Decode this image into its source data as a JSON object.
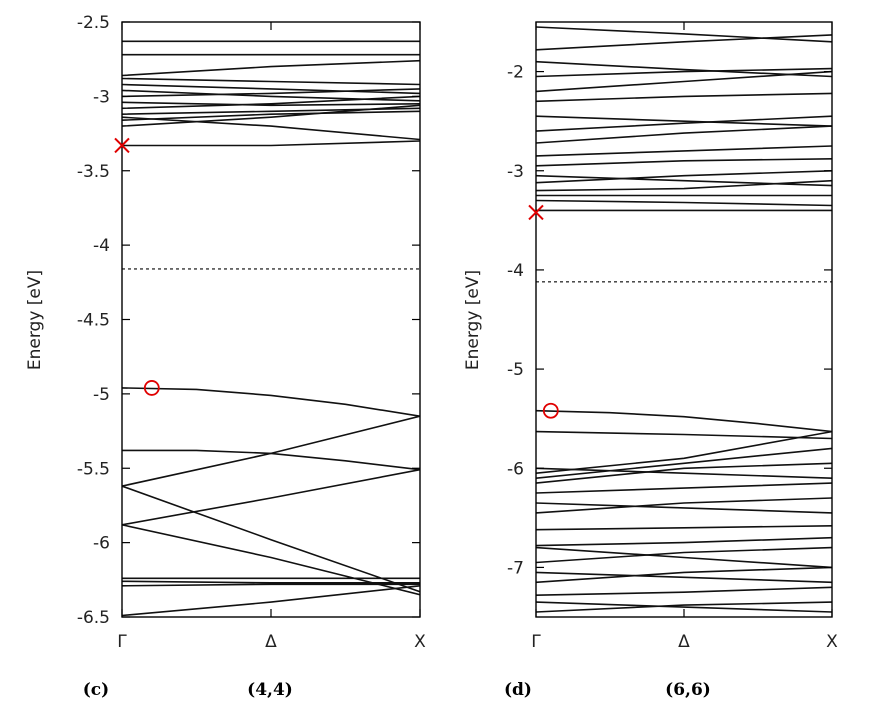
{
  "chart_data": [
    {
      "type": "line",
      "panel_label": "(c)",
      "title": "(4,4)",
      "xlabel": "",
      "ylabel": "Energy [eV]",
      "ylim": [
        -6.5,
        -2.5
      ],
      "yticks": [
        -2.5,
        -3,
        -3.5,
        -4,
        -4.5,
        -5,
        -5.5,
        -6,
        -6.5
      ],
      "ytick_labels": [
        "-2.5",
        "-3",
        "-3.5",
        "-4",
        "-4.5",
        "-5",
        "-5.5",
        "-6",
        "-6.5"
      ],
      "xticks": [
        "Γ",
        "Δ",
        "X"
      ],
      "grid": false,
      "fermi_level": -4.16,
      "markers": [
        {
          "kind": "cross",
          "k": 0.0,
          "energy": -3.33,
          "color": "#e00000"
        },
        {
          "kind": "circle",
          "k": 0.1,
          "energy": -4.96,
          "color": "#e00000"
        }
      ],
      "series": [
        {
          "x": [
            0,
            0.5,
            1
          ],
          "values": [
            -2.63,
            -2.63,
            -2.63
          ]
        },
        {
          "x": [
            0,
            0.5,
            1
          ],
          "values": [
            -2.72,
            -2.72,
            -2.72
          ]
        },
        {
          "x": [
            0,
            0.5,
            1
          ],
          "values": [
            -2.86,
            -2.8,
            -2.76
          ]
        },
        {
          "x": [
            0,
            0.5,
            1
          ],
          "values": [
            -2.88,
            -2.9,
            -2.92
          ]
        },
        {
          "x": [
            0,
            0.5,
            1
          ],
          "values": [
            -2.92,
            -2.95,
            -2.98
          ]
        },
        {
          "x": [
            0,
            0.5,
            1
          ],
          "values": [
            -2.96,
            -3.0,
            -3.03
          ]
        },
        {
          "x": [
            0,
            0.5,
            1
          ],
          "values": [
            -3.0,
            -2.98,
            -2.95
          ]
        },
        {
          "x": [
            0,
            0.5,
            1
          ],
          "values": [
            -3.04,
            -3.06,
            -3.05
          ]
        },
        {
          "x": [
            0,
            0.5,
            1
          ],
          "values": [
            -3.08,
            -3.05,
            -3.0
          ]
        },
        {
          "x": [
            0,
            0.5,
            1
          ],
          "values": [
            -3.12,
            -3.1,
            -3.08
          ]
        },
        {
          "x": [
            0,
            0.5,
            1
          ],
          "values": [
            -3.16,
            -3.12,
            -3.1
          ]
        },
        {
          "x": [
            0,
            0.5,
            1
          ],
          "values": [
            -3.2,
            -3.14,
            -3.06
          ]
        },
        {
          "x": [
            0,
            0.5,
            1
          ],
          "values": [
            -3.14,
            -3.2,
            -3.29
          ]
        },
        {
          "x": [
            0,
            0.5,
            1
          ],
          "values": [
            -3.33,
            -3.33,
            -3.3
          ]
        },
        {
          "x": [
            0,
            0.25,
            0.5,
            0.75,
            1
          ],
          "values": [
            -4.96,
            -4.97,
            -5.01,
            -5.07,
            -5.15
          ]
        },
        {
          "x": [
            0,
            0.25,
            0.5,
            0.75,
            1
          ],
          "values": [
            -5.38,
            -5.38,
            -5.4,
            -5.45,
            -5.51
          ]
        },
        {
          "x": [
            0,
            0.5,
            1
          ],
          "values": [
            -5.62,
            -5.4,
            -5.15
          ]
        },
        {
          "x": [
            0,
            0.5,
            1
          ],
          "values": [
            -5.62,
            -5.98,
            -6.33
          ]
        },
        {
          "x": [
            0,
            0.5,
            1
          ],
          "values": [
            -5.88,
            -5.7,
            -5.51
          ]
        },
        {
          "x": [
            0,
            0.5,
            1
          ],
          "values": [
            -5.88,
            -6.1,
            -6.35
          ]
        },
        {
          "x": [
            0,
            0.5,
            1
          ],
          "values": [
            -6.24,
            -6.24,
            -6.24
          ]
        },
        {
          "x": [
            0,
            0.5,
            1
          ],
          "values": [
            -6.26,
            -6.27,
            -6.27
          ]
        },
        {
          "x": [
            0,
            0.5,
            1
          ],
          "values": [
            -6.29,
            -6.28,
            -6.28
          ]
        },
        {
          "x": [
            0,
            0.5,
            1
          ],
          "values": [
            -6.49,
            -6.4,
            -6.29
          ]
        }
      ]
    },
    {
      "type": "line",
      "panel_label": "(d)",
      "title": "(6,6)",
      "xlabel": "",
      "ylabel": "Energy [eV]",
      "ylim": [
        -7.5,
        -1.5
      ],
      "yticks": [
        -2,
        -3,
        -4,
        -5,
        -6,
        -7
      ],
      "ytick_labels": [
        "-2",
        "-3",
        "-4",
        "-5",
        "-6",
        "-7"
      ],
      "xticks": [
        "Γ",
        "Δ",
        "X"
      ],
      "grid": false,
      "fermi_level": -4.12,
      "markers": [
        {
          "kind": "cross",
          "k": 0.0,
          "energy": -3.42,
          "color": "#e00000"
        },
        {
          "kind": "circle",
          "k": 0.05,
          "energy": -5.42,
          "color": "#e00000"
        }
      ],
      "series": [
        {
          "x": [
            0,
            0.5,
            1
          ],
          "values": [
            -1.55,
            -1.62,
            -1.7
          ]
        },
        {
          "x": [
            0,
            0.5,
            1
          ],
          "values": [
            -1.78,
            -1.7,
            -1.63
          ]
        },
        {
          "x": [
            0,
            0.5,
            1
          ],
          "values": [
            -1.9,
            -1.98,
            -2.05
          ]
        },
        {
          "x": [
            0,
            0.5,
            1
          ],
          "values": [
            -2.05,
            -2.0,
            -1.97
          ]
        },
        {
          "x": [
            0,
            0.5,
            1
          ],
          "values": [
            -2.2,
            -2.1,
            -2.0
          ]
        },
        {
          "x": [
            0,
            0.5,
            1
          ],
          "values": [
            -2.3,
            -2.25,
            -2.22
          ]
        },
        {
          "x": [
            0,
            0.5,
            1
          ],
          "values": [
            -2.45,
            -2.5,
            -2.55
          ]
        },
        {
          "x": [
            0,
            0.5,
            1
          ],
          "values": [
            -2.6,
            -2.52,
            -2.45
          ]
        },
        {
          "x": [
            0,
            0.5,
            1
          ],
          "values": [
            -2.72,
            -2.62,
            -2.55
          ]
        },
        {
          "x": [
            0,
            0.5,
            1
          ],
          "values": [
            -2.85,
            -2.8,
            -2.75
          ]
        },
        {
          "x": [
            0,
            0.5,
            1
          ],
          "values": [
            -2.95,
            -2.9,
            -2.88
          ]
        },
        {
          "x": [
            0,
            0.5,
            1
          ],
          "values": [
            -3.05,
            -3.1,
            -3.15
          ]
        },
        {
          "x": [
            0,
            0.5,
            1
          ],
          "values": [
            -3.12,
            -3.05,
            -3.0
          ]
        },
        {
          "x": [
            0,
            0.5,
            1
          ],
          "values": [
            -3.2,
            -3.18,
            -3.1
          ]
        },
        {
          "x": [
            0,
            0.5,
            1
          ],
          "values": [
            -3.25,
            -3.25,
            -3.25
          ]
        },
        {
          "x": [
            0,
            0.5,
            1
          ],
          "values": [
            -3.3,
            -3.32,
            -3.35
          ]
        },
        {
          "x": [
            0,
            0.5,
            1
          ],
          "values": [
            -3.4,
            -3.4,
            -3.4
          ]
        },
        {
          "x": [
            0,
            0.25,
            0.5,
            0.75,
            1
          ],
          "values": [
            -5.42,
            -5.44,
            -5.48,
            -5.55,
            -5.63
          ]
        },
        {
          "x": [
            0,
            0.5,
            1
          ],
          "values": [
            -5.63,
            -5.66,
            -5.7
          ]
        },
        {
          "x": [
            0,
            0.5,
            1
          ],
          "values": [
            -6.05,
            -5.9,
            -5.63
          ]
        },
        {
          "x": [
            0,
            0.5,
            1
          ],
          "values": [
            -6.1,
            -5.95,
            -5.8
          ]
        },
        {
          "x": [
            0,
            0.5,
            1
          ],
          "values": [
            -6.15,
            -6.0,
            -5.95
          ]
        },
        {
          "x": [
            0,
            0.5,
            1
          ],
          "values": [
            -6.0,
            -6.05,
            -6.1
          ]
        },
        {
          "x": [
            0,
            0.5,
            1
          ],
          "values": [
            -6.25,
            -6.2,
            -6.15
          ]
        },
        {
          "x": [
            0,
            0.5,
            1
          ],
          "values": [
            -6.35,
            -6.4,
            -6.45
          ]
        },
        {
          "x": [
            0,
            0.5,
            1
          ],
          "values": [
            -6.45,
            -6.35,
            -6.3
          ]
        },
        {
          "x": [
            0,
            0.5,
            1
          ],
          "values": [
            -6.62,
            -6.6,
            -6.58
          ]
        },
        {
          "x": [
            0,
            0.5,
            1
          ],
          "values": [
            -6.78,
            -6.75,
            -6.7
          ]
        },
        {
          "x": [
            0,
            0.5,
            1
          ],
          "values": [
            -6.8,
            -6.9,
            -7.0
          ]
        },
        {
          "x": [
            0,
            0.5,
            1
          ],
          "values": [
            -6.95,
            -6.85,
            -6.8
          ]
        },
        {
          "x": [
            0,
            0.5,
            1
          ],
          "values": [
            -7.05,
            -7.1,
            -7.15
          ]
        },
        {
          "x": [
            0,
            0.5,
            1
          ],
          "values": [
            -7.15,
            -7.05,
            -7.0
          ]
        },
        {
          "x": [
            0,
            0.5,
            1
          ],
          "values": [
            -7.28,
            -7.25,
            -7.2
          ]
        },
        {
          "x": [
            0,
            0.5,
            1
          ],
          "values": [
            -7.35,
            -7.4,
            -7.45
          ]
        },
        {
          "x": [
            0,
            0.5,
            1
          ],
          "values": [
            -7.45,
            -7.38,
            -7.35
          ]
        }
      ]
    }
  ]
}
